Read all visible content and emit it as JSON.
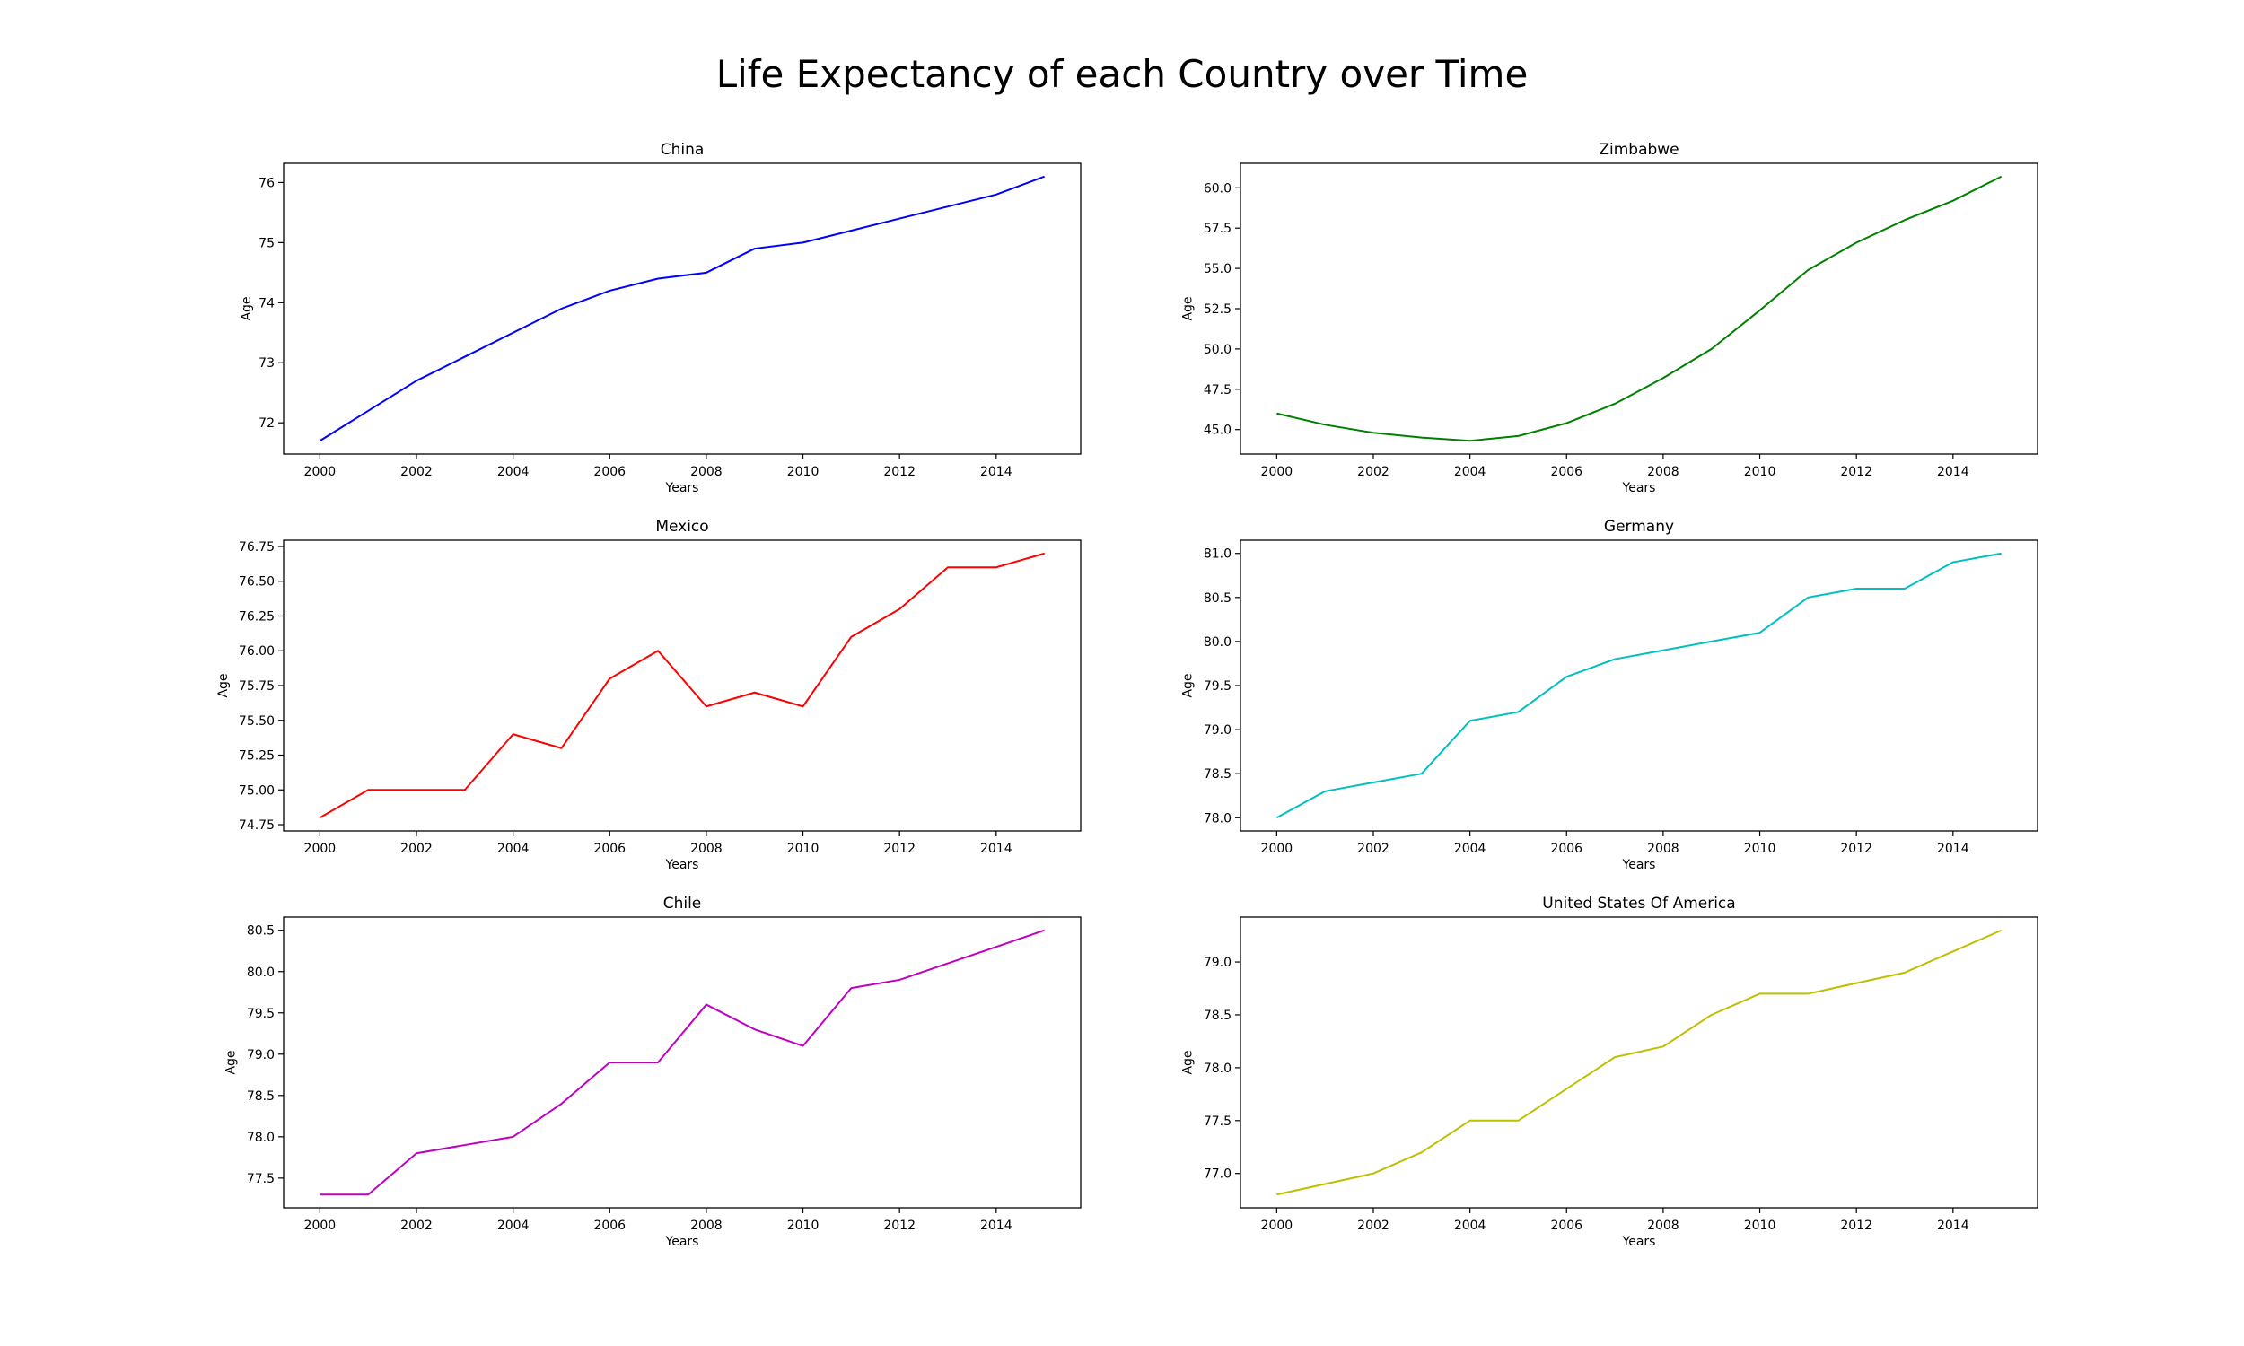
{
  "figure": {
    "title": "Life Expectancy of each Country over Time"
  },
  "chart_data": [
    {
      "type": "line",
      "title": "China",
      "xlabel": "Years",
      "ylabel": "Age",
      "color": "#0000ff",
      "x": [
        2000,
        2001,
        2002,
        2003,
        2004,
        2005,
        2006,
        2007,
        2008,
        2009,
        2010,
        2011,
        2012,
        2013,
        2014,
        2015
      ],
      "values": [
        71.7,
        72.2,
        72.7,
        73.1,
        73.5,
        73.9,
        74.2,
        74.4,
        74.5,
        74.9,
        75.0,
        75.2,
        75.4,
        75.6,
        75.8,
        76.1
      ],
      "xlim": [
        1999.25,
        2015.75
      ],
      "ylim": [
        71.48,
        76.32
      ],
      "xticks": [
        2000,
        2002,
        2004,
        2006,
        2008,
        2010,
        2012,
        2014
      ],
      "yticks": [
        72,
        73,
        74,
        75,
        76
      ],
      "ytick_labels": [
        "72",
        "73",
        "74",
        "75",
        "76"
      ],
      "grid": false
    },
    {
      "type": "line",
      "title": "Zimbabwe",
      "xlabel": "Years",
      "ylabel": "Age",
      "color": "#008000",
      "x": [
        2000,
        2001,
        2002,
        2003,
        2004,
        2005,
        2006,
        2007,
        2008,
        2009,
        2010,
        2011,
        2012,
        2013,
        2014,
        2015
      ],
      "values": [
        46.0,
        45.3,
        44.8,
        44.5,
        44.3,
        44.6,
        45.4,
        46.6,
        48.2,
        50.0,
        52.4,
        54.9,
        56.6,
        58.0,
        59.2,
        60.7
      ],
      "xlim": [
        1999.25,
        2015.75
      ],
      "ylim": [
        43.48,
        61.52
      ],
      "xticks": [
        2000,
        2002,
        2004,
        2006,
        2008,
        2010,
        2012,
        2014
      ],
      "yticks": [
        45.0,
        47.5,
        50.0,
        52.5,
        55.0,
        57.5,
        60.0
      ],
      "ytick_labels": [
        "45.0",
        "47.5",
        "50.0",
        "52.5",
        "55.0",
        "57.5",
        "60.0"
      ],
      "grid": false
    },
    {
      "type": "line",
      "title": "Mexico",
      "xlabel": "Years",
      "ylabel": "Age",
      "color": "#ff0000",
      "x": [
        2000,
        2001,
        2002,
        2003,
        2004,
        2005,
        2006,
        2007,
        2008,
        2009,
        2010,
        2011,
        2012,
        2013,
        2014,
        2015
      ],
      "values": [
        74.8,
        75.0,
        75.0,
        75.0,
        75.4,
        75.3,
        75.8,
        76.0,
        75.6,
        75.7,
        75.6,
        76.1,
        76.3,
        76.6,
        76.6,
        76.7
      ],
      "xlim": [
        1999.25,
        2015.75
      ],
      "ylim": [
        74.705,
        76.795
      ],
      "xticks": [
        2000,
        2002,
        2004,
        2006,
        2008,
        2010,
        2012,
        2014
      ],
      "yticks": [
        74.75,
        75.0,
        75.25,
        75.5,
        75.75,
        76.0,
        76.25,
        76.5,
        76.75
      ],
      "ytick_labels": [
        "74.75",
        "75.00",
        "75.25",
        "75.50",
        "75.75",
        "76.00",
        "76.25",
        "76.50",
        "76.75"
      ],
      "grid": false
    },
    {
      "type": "line",
      "title": "Germany",
      "xlabel": "Years",
      "ylabel": "Age",
      "color": "#00bfbf",
      "x": [
        2000,
        2001,
        2002,
        2003,
        2004,
        2005,
        2006,
        2007,
        2008,
        2009,
        2010,
        2011,
        2012,
        2013,
        2014,
        2015
      ],
      "values": [
        78.0,
        78.3,
        78.4,
        78.5,
        79.1,
        79.2,
        79.6,
        79.8,
        79.9,
        80.0,
        80.1,
        80.5,
        80.6,
        80.6,
        80.9,
        81.0
      ],
      "xlim": [
        1999.25,
        2015.75
      ],
      "ylim": [
        77.85,
        81.15
      ],
      "xticks": [
        2000,
        2002,
        2004,
        2006,
        2008,
        2010,
        2012,
        2014
      ],
      "yticks": [
        78.0,
        78.5,
        79.0,
        79.5,
        80.0,
        80.5,
        81.0
      ],
      "ytick_labels": [
        "78.0",
        "78.5",
        "79.0",
        "79.5",
        "80.0",
        "80.5",
        "81.0"
      ],
      "grid": false
    },
    {
      "type": "line",
      "title": "Chile",
      "xlabel": "Years",
      "ylabel": "Age",
      "color": "#bf00bf",
      "x": [
        2000,
        2001,
        2002,
        2003,
        2004,
        2005,
        2006,
        2007,
        2008,
        2009,
        2010,
        2011,
        2012,
        2013,
        2014,
        2015
      ],
      "values": [
        77.3,
        77.3,
        77.8,
        77.9,
        78.0,
        78.4,
        78.9,
        78.9,
        79.6,
        79.3,
        79.1,
        79.8,
        79.9,
        80.1,
        80.3,
        80.5
      ],
      "xlim": [
        1999.25,
        2015.75
      ],
      "ylim": [
        77.14,
        80.66
      ],
      "xticks": [
        2000,
        2002,
        2004,
        2006,
        2008,
        2010,
        2012,
        2014
      ],
      "yticks": [
        77.5,
        78.0,
        78.5,
        79.0,
        79.5,
        80.0,
        80.5
      ],
      "ytick_labels": [
        "77.5",
        "78.0",
        "78.5",
        "79.0",
        "79.5",
        "80.0",
        "80.5"
      ],
      "grid": false
    },
    {
      "type": "line",
      "title": "United States Of America",
      "xlabel": "Years",
      "ylabel": "Age",
      "color": "#bfbf00",
      "x": [
        2000,
        2001,
        2002,
        2003,
        2004,
        2005,
        2006,
        2007,
        2008,
        2009,
        2010,
        2011,
        2012,
        2013,
        2014,
        2015
      ],
      "values": [
        76.8,
        76.9,
        77.0,
        77.2,
        77.5,
        77.5,
        77.8,
        78.1,
        78.2,
        78.5,
        78.7,
        78.7,
        78.8,
        78.9,
        79.1,
        79.3
      ],
      "xlim": [
        1999.25,
        2015.75
      ],
      "ylim": [
        76.675,
        79.425
      ],
      "xticks": [
        2000,
        2002,
        2004,
        2006,
        2008,
        2010,
        2012,
        2014
      ],
      "yticks": [
        77.0,
        77.5,
        78.0,
        78.5,
        79.0
      ],
      "ytick_labels": [
        "77.0",
        "77.5",
        "78.0",
        "78.5",
        "79.0"
      ],
      "grid": false
    }
  ]
}
